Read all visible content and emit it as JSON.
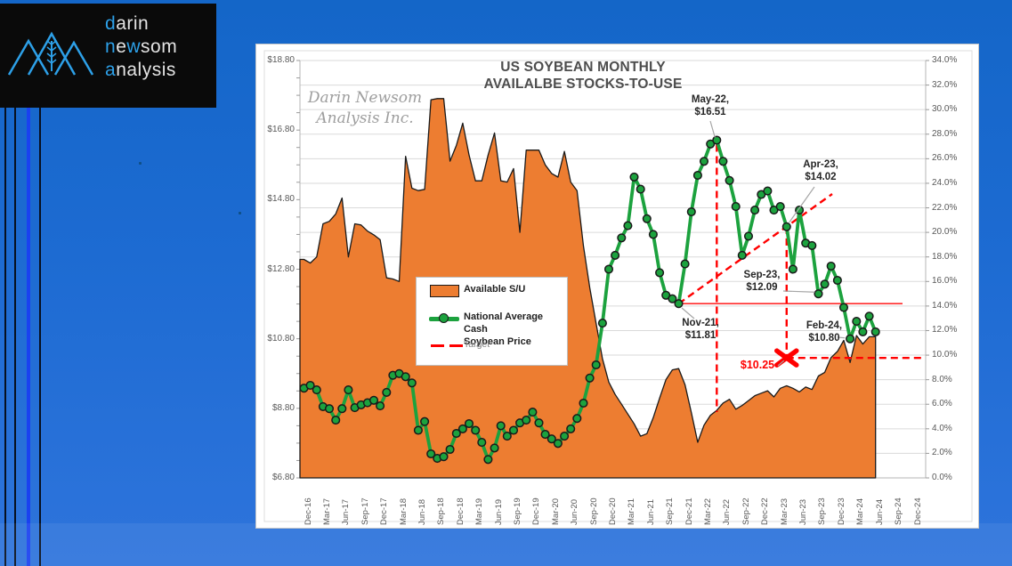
{
  "logo": {
    "brand_lines": [
      [
        {
          "t": "d",
          "hl": true
        },
        {
          "t": "arin",
          "hl": false
        }
      ],
      [
        {
          "t": "n",
          "hl": true
        },
        {
          "t": "e",
          "hl": false
        },
        {
          "t": "w",
          "hl": true
        },
        {
          "t": "som",
          "hl": false
        }
      ],
      [
        {
          "t": "a",
          "hl": true
        },
        {
          "t": "nalysis",
          "hl": false
        }
      ]
    ]
  },
  "chart": {
    "title_line1": "US SOYBEAN MONTHLY",
    "title_line2": "AVAILALBE STOCKS-TO-USE",
    "watermark_line1": "Darin Newsom",
    "watermark_line2": "Analysis Inc.",
    "legend": {
      "item1": "Available S/U",
      "item2_line1": "National Average Cash",
      "item2_line2": "Soybean Price",
      "item3": "Target"
    }
  },
  "chart_data": {
    "type": "area+line",
    "title": "US SOYBEAN MONTHLY AVAILALBE STOCKS-TO-USE",
    "x_start": "Dec-16",
    "x_end_of_data": "Jun-24",
    "x_interval": "monthly",
    "x_tick_labels": [
      "Dec-16",
      "Mar-17",
      "Jun-17",
      "Sep-17",
      "Dec-17",
      "Mar-18",
      "Jun-18",
      "Sep-18",
      "Dec-18",
      "Mar-19",
      "Jun-19",
      "Sep-19",
      "Dec-19",
      "Mar-20",
      "Jun-20",
      "Sep-20",
      "Dec-20",
      "Mar-21",
      "Jun-21",
      "Sep-21",
      "Dec-21",
      "Mar-22",
      "Jun-22",
      "Sep-22",
      "Dec-22",
      "Mar-23",
      "Jun-23",
      "Sep-23",
      "Dec-23",
      "Mar-24",
      "Jun-24",
      "Sep-24",
      "Dec-24"
    ],
    "left_axis": {
      "label_format": "dollars",
      "min": 6.8,
      "max": 18.8,
      "tick_step": 2.0,
      "tick_labels": [
        "$18.80",
        "$16.80",
        "$14.80",
        "$12.80",
        "$10.80",
        "$8.80",
        "$6.80"
      ]
    },
    "right_axis": {
      "label_format": "percent",
      "min": 0.0,
      "max": 34.0,
      "tick_step": 2.0,
      "tick_labels": [
        "34.0%",
        "32.0%",
        "30.0%",
        "28.0%",
        "26.0%",
        "24.0%",
        "22.0%",
        "20.0%",
        "18.0%",
        "16.0%",
        "14.0%",
        "12.0%",
        "10.0%",
        "8.0%",
        "6.0%",
        "4.0%",
        "2.0%",
        "0.0%"
      ]
    },
    "grid": "horizontal, every 2% of right axis",
    "legend_position": "middle-left box",
    "series": [
      {
        "name": "Available S/U",
        "type": "area",
        "axis": "right",
        "color": "#ED7D31",
        "outline": "#1a1a1a",
        "values": [
          17.8,
          17.5,
          18.0,
          20.7,
          20.9,
          21.5,
          22.8,
          18.0,
          20.7,
          20.6,
          20.1,
          19.8,
          19.4,
          16.3,
          16.2,
          16.0,
          26.2,
          23.6,
          23.4,
          23.5,
          30.8,
          30.9,
          30.9,
          25.8,
          27.1,
          28.9,
          26.3,
          24.2,
          24.2,
          26.3,
          28.1,
          24.2,
          24.1,
          25.2,
          20.0,
          26.7,
          26.7,
          26.7,
          25.5,
          24.8,
          24.5,
          26.6,
          24.1,
          23.4,
          18.9,
          15.5,
          12.6,
          9.7,
          7.8,
          6.8,
          6.0,
          5.2,
          4.4,
          3.4,
          3.6,
          4.9,
          6.5,
          8.0,
          8.8,
          8.9,
          7.6,
          5.3,
          2.9,
          4.3,
          5.1,
          5.5,
          6.1,
          6.4,
          5.6,
          5.9,
          6.3,
          6.7,
          6.9,
          7.1,
          6.6,
          7.3,
          7.5,
          7.3,
          7.0,
          7.4,
          7.2,
          8.3,
          8.6,
          9.8,
          10.3,
          11.2,
          9.4,
          11.6,
          10.9,
          11.5,
          11.5
        ]
      },
      {
        "name": "National Average Cash Soybean Price",
        "type": "line",
        "axis": "left",
        "color": "#1CA23E",
        "marker": "circle",
        "values": [
          9.38,
          9.46,
          9.33,
          8.85,
          8.79,
          8.46,
          8.79,
          9.33,
          8.82,
          8.9,
          8.96,
          9.03,
          8.87,
          9.26,
          9.75,
          9.8,
          9.71,
          9.53,
          8.17,
          8.42,
          7.49,
          7.36,
          7.41,
          7.62,
          8.08,
          8.21,
          8.36,
          8.17,
          7.82,
          7.33,
          7.66,
          8.3,
          8.0,
          8.17,
          8.38,
          8.46,
          8.69,
          8.38,
          8.05,
          7.92,
          7.79,
          8.0,
          8.21,
          8.51,
          8.95,
          9.67,
          10.05,
          11.25,
          12.8,
          13.2,
          13.7,
          14.05,
          15.45,
          15.1,
          14.25,
          13.8,
          12.7,
          12.05,
          11.95,
          11.81,
          12.95,
          14.45,
          15.5,
          15.9,
          16.4,
          16.51,
          15.9,
          15.35,
          14.6,
          13.2,
          13.75,
          14.5,
          14.95,
          15.05,
          14.5,
          14.6,
          14.02,
          12.8,
          14.5,
          13.55,
          13.48,
          12.09,
          12.37,
          12.89,
          12.48,
          11.7,
          10.8,
          11.3,
          11.0,
          11.45,
          11.0
        ]
      }
    ],
    "annotations": [
      {
        "id": "may22",
        "month": "May-22",
        "month_index": 65,
        "value": 16.51,
        "line1": "May-22,",
        "line2": "$16.51"
      },
      {
        "id": "apr23",
        "month": "Apr-23",
        "month_index": 76,
        "value": 14.02,
        "line1": "Apr-23,",
        "line2": "$14.02"
      },
      {
        "id": "sep23",
        "month": "Sep-23",
        "month_index": 81,
        "value": 12.09,
        "line1": "Sep-23,",
        "line2": "$12.09"
      },
      {
        "id": "nov21",
        "month": "Nov-21",
        "month_index": 59,
        "value": 11.81,
        "line1": "Nov-21,",
        "line2": "$11.81"
      },
      {
        "id": "feb24",
        "month": "Feb-24",
        "month_index": 86,
        "value": 10.8,
        "line1": "Feb-24,",
        "line2": "$10.80"
      },
      {
        "id": "target",
        "label": "$10.25",
        "value": 10.25,
        "color": "#FF0000"
      }
    ],
    "target_overlay": {
      "color": "#FF0000",
      "solid_line_at": 11.81,
      "dashed_trendline": "from Nov-21 $11.81 rising through Apr-23 $14.02",
      "vertical_dashed_at": [
        "May-22 peak",
        "Apr-23"
      ],
      "dashed_horizontal_at": 10.25,
      "x_marker_at": {
        "month": "Apr-23",
        "value": 10.25
      }
    }
  }
}
